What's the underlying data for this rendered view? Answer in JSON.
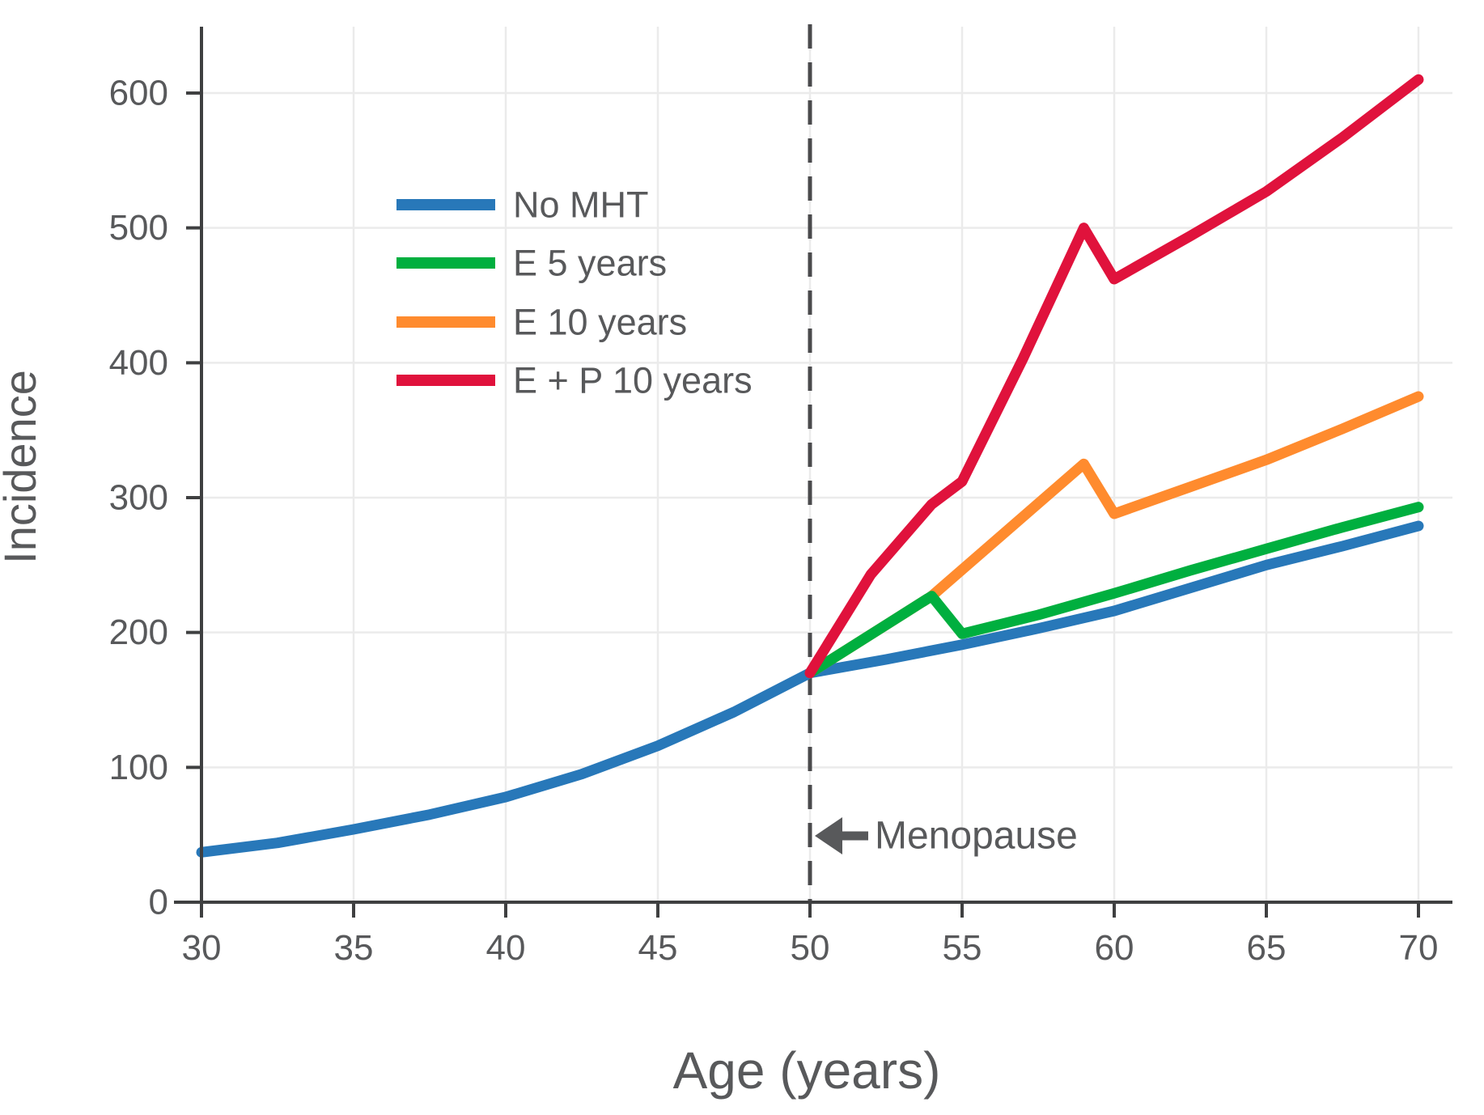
{
  "figure": {
    "background": "#ffffff",
    "text_color": "#58595B",
    "spine_color": "#3F4041",
    "grid_color": "#EBEBEB",
    "dashed_line_color": "#4A4A4C",
    "annotation_color": "#58595B"
  },
  "chart_data": {
    "type": "line",
    "title": "",
    "xlabel": "Age (years)",
    "ylabel": "Incidence",
    "xlim": [
      30,
      71
    ],
    "ylim": [
      0,
      650
    ],
    "grid": true,
    "x_ticks": [
      30,
      35,
      40,
      45,
      50,
      55,
      60,
      65,
      70
    ],
    "x_tick_labels": [
      "30",
      "35",
      "40",
      "45",
      "50",
      "55",
      "60",
      "65",
      "70"
    ],
    "y_ticks": [
      0,
      100,
      200,
      300,
      400,
      500,
      600
    ],
    "y_tick_labels": [
      "0",
      "100",
      "200",
      "300",
      "400",
      "500",
      "600"
    ],
    "x_gridlines": [
      35,
      40,
      45,
      50,
      55,
      60,
      65,
      70
    ],
    "y_gridlines": [
      100,
      200,
      300,
      400,
      500,
      600
    ],
    "legend_position": "upper-left-inside",
    "vline": {
      "x": 50,
      "style": "dashed"
    },
    "annotation": {
      "text": "Menopause",
      "arrow": "left",
      "x": 50,
      "y": 51
    },
    "series": [
      {
        "name": "No MHT",
        "color": "#2878B9",
        "points": [
          [
            30,
            37
          ],
          [
            32.5,
            44
          ],
          [
            35,
            54
          ],
          [
            37.5,
            65
          ],
          [
            40,
            78
          ],
          [
            42.5,
            95
          ],
          [
            45,
            116
          ],
          [
            47.5,
            141
          ],
          [
            50,
            170
          ],
          [
            52.5,
            180
          ],
          [
            55,
            191
          ],
          [
            57.5,
            203
          ],
          [
            60,
            216
          ],
          [
            62.5,
            233
          ],
          [
            65,
            250
          ],
          [
            67.5,
            264
          ],
          [
            70,
            279
          ]
        ]
      },
      {
        "name": "E 5 years",
        "color": "#00AF3F",
        "points": [
          [
            50,
            170
          ],
          [
            54,
            227
          ],
          [
            55,
            199
          ],
          [
            57.5,
            213
          ],
          [
            60,
            229
          ],
          [
            62.5,
            246
          ],
          [
            65,
            262
          ],
          [
            67.5,
            278
          ],
          [
            70,
            293
          ]
        ]
      },
      {
        "name": "E 10 years",
        "color": "#FF8B2E",
        "points": [
          [
            50,
            170
          ],
          [
            54,
            227
          ],
          [
            59,
            325
          ],
          [
            60,
            288
          ],
          [
            62.5,
            308
          ],
          [
            65,
            328
          ],
          [
            67.5,
            351
          ],
          [
            70,
            375
          ]
        ]
      },
      {
        "name": "E + P 10 years",
        "color": "#E0123C",
        "points": [
          [
            50,
            170
          ],
          [
            52,
            243
          ],
          [
            54,
            295
          ],
          [
            55,
            312
          ],
          [
            57,
            403
          ],
          [
            59,
            500
          ],
          [
            60,
            462
          ],
          [
            62.5,
            494
          ],
          [
            65,
            527
          ],
          [
            67.5,
            567
          ],
          [
            70,
            610
          ]
        ]
      }
    ]
  }
}
